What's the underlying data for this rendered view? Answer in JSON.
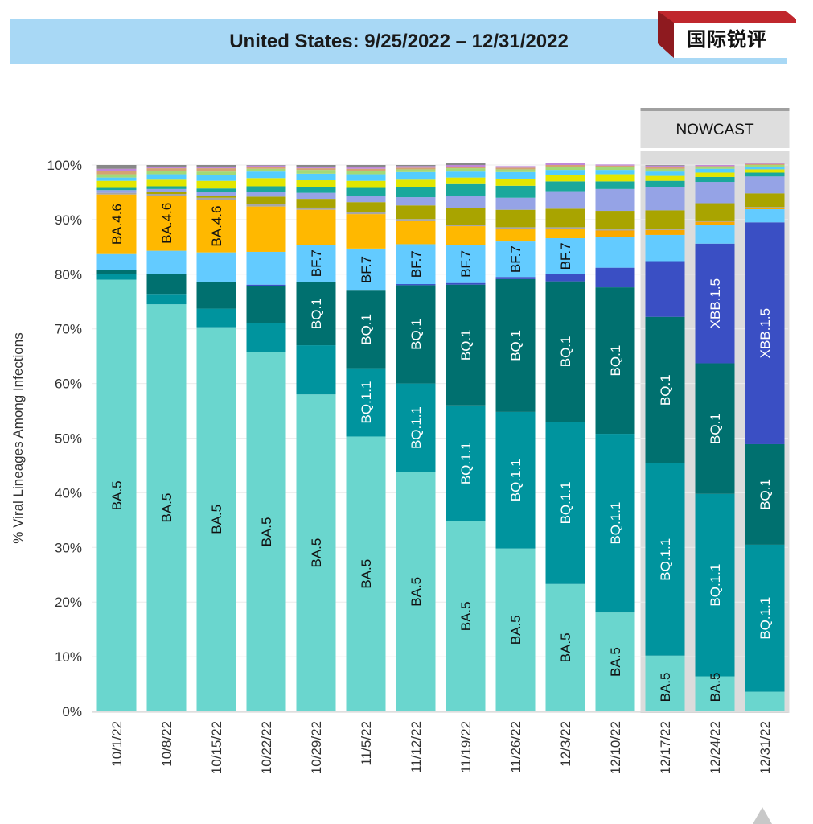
{
  "header": {
    "title": "United States: 9/25/2022 – 12/31/2022",
    "logo_text": "国际锐评",
    "logo_accent_color": "#c0272d"
  },
  "nowcast": {
    "label": "NOWCAST",
    "dates": [
      "12/17/22",
      "12/24/22",
      "12/31/22"
    ]
  },
  "chart_data": {
    "type": "bar",
    "stacked": true,
    "ylabel": "% Viral Lineages Among Infections",
    "ylim": [
      0,
      100
    ],
    "yticks": [
      "0%",
      "10%",
      "20%",
      "30%",
      "40%",
      "50%",
      "60%",
      "70%",
      "80%",
      "90%",
      "100%"
    ],
    "categories": [
      "10/1/22",
      "10/8/22",
      "10/15/22",
      "10/22/22",
      "10/29/22",
      "11/5/22",
      "11/12/22",
      "11/19/22",
      "11/26/22",
      "12/3/22",
      "12/10/22",
      "12/17/22",
      "12/24/22",
      "12/31/22"
    ],
    "series": [
      {
        "name": "BA.5",
        "color": "#6ad6ce",
        "text_color": "#111111",
        "values": [
          79.0,
          74.5,
          70.3,
          65.7,
          58.0,
          50.3,
          43.8,
          34.8,
          29.8,
          23.3,
          18.1,
          10.2,
          6.4,
          3.6
        ]
      },
      {
        "name": "BQ.1.1",
        "color": "#00949e",
        "text_color": "#ffffff",
        "values": [
          1.0,
          1.9,
          3.4,
          5.4,
          9.0,
          12.5,
          16.2,
          21.2,
          25.0,
          29.7,
          32.7,
          35.2,
          33.4,
          26.9
        ]
      },
      {
        "name": "BQ.1",
        "color": "#00706f",
        "text_color": "#ffffff",
        "values": [
          0.8,
          3.7,
          4.9,
          6.8,
          11.6,
          14.2,
          18.0,
          22.1,
          24.3,
          25.7,
          26.8,
          26.8,
          23.9,
          18.4
        ]
      },
      {
        "name": "XBB.1.5",
        "color": "#3a4fc4",
        "text_color": "#ffffff",
        "values": [
          0.0,
          0.0,
          0.0,
          0.2,
          0.0,
          0.0,
          0.2,
          0.3,
          0.4,
          1.3,
          3.6,
          10.2,
          21.9,
          40.6
        ]
      },
      {
        "name": "BF.7",
        "color": "#63cbff",
        "text_color": "#111111",
        "values": [
          2.9,
          4.2,
          5.4,
          6.0,
          6.8,
          7.7,
          7.3,
          7.0,
          6.5,
          6.6,
          5.6,
          4.8,
          3.4,
          2.4
        ]
      },
      {
        "name": "",
        "color": "#f9a800",
        "text_color": "#111111",
        "values": [
          0.0,
          0.0,
          0.0,
          0.0,
          0.0,
          0.0,
          0.0,
          0.0,
          0.0,
          0.0,
          1.2,
          0.9,
          0.6,
          0.3
        ]
      },
      {
        "name": "BA.4.6",
        "color": "#ffb800",
        "text_color": "#111111",
        "values": [
          10.9,
          10.1,
          9.6,
          8.3,
          6.4,
          6.3,
          4.2,
          3.4,
          2.3,
          1.7,
          0.0,
          0.0,
          0.0,
          0.0
        ]
      },
      {
        "name": "",
        "color": "#a6a6a6",
        "text_color": "#111111",
        "values": [
          0.3,
          0.3,
          0.4,
          0.4,
          0.4,
          0.4,
          0.4,
          0.3,
          0.3,
          0.3,
          0.2,
          0.2,
          0.1,
          0.1
        ]
      },
      {
        "name": "",
        "color": "#a9a400",
        "text_color": "#111111",
        "values": [
          0.0,
          0.3,
          0.4,
          1.4,
          1.6,
          1.8,
          2.5,
          3.0,
          3.2,
          3.4,
          3.4,
          3.4,
          3.3,
          2.5
        ]
      },
      {
        "name": "",
        "color": "#95a3e6",
        "text_color": "#111111",
        "values": [
          0.5,
          0.6,
          0.7,
          0.9,
          1.1,
          1.2,
          1.5,
          2.3,
          2.2,
          3.2,
          4.0,
          4.2,
          3.9,
          3.1
        ]
      },
      {
        "name": "",
        "color": "#1aa89c",
        "text_color": "#111111",
        "values": [
          0.4,
          0.5,
          0.6,
          1.0,
          1.1,
          1.4,
          1.8,
          2.1,
          2.2,
          1.8,
          1.4,
          1.2,
          0.9,
          0.7
        ]
      },
      {
        "name": "",
        "color": "#e2e600",
        "text_color": "#111111",
        "values": [
          1.3,
          1.2,
          1.4,
          1.5,
          1.2,
          1.3,
          1.4,
          1.2,
          1.3,
          1.2,
          1.3,
          0.9,
          0.8,
          0.6
        ]
      },
      {
        "name": "",
        "color": "#53cdff",
        "text_color": "#111111",
        "values": [
          0.6,
          1.0,
          1.1,
          1.2,
          1.2,
          1.2,
          1.4,
          1.1,
          1.2,
          0.9,
          0.8,
          0.8,
          0.7,
          0.5
        ]
      },
      {
        "name": "",
        "color": "#a3d977",
        "text_color": "#111111",
        "values": [
          0.6,
          0.6,
          0.6,
          0.5,
          0.7,
          0.6,
          0.5,
          0.6,
          0.5,
          0.6,
          0.5,
          0.5,
          0.3,
          0.3
        ]
      },
      {
        "name": "",
        "color": "#d4a373",
        "text_color": "#111111",
        "values": [
          0.6,
          0.5,
          0.6,
          0.3,
          0.3,
          0.4,
          0.3,
          0.3,
          0.3,
          0.3,
          0.3,
          0.3,
          0.2,
          0.2
        ]
      },
      {
        "name": "",
        "color": "#c087d8",
        "text_color": "#111111",
        "values": [
          0.4,
          0.3,
          0.3,
          0.3,
          0.3,
          0.3,
          0.3,
          0.3,
          0.3,
          0.3,
          0.2,
          0.3,
          0.2,
          0.2
        ]
      },
      {
        "name": "",
        "color": "#888888",
        "text_color": "#111111",
        "values": [
          0.7,
          0.3,
          0.3,
          0.1,
          0.3,
          0.4,
          0.2,
          0.3,
          0.0,
          0.0,
          0.0,
          0.1,
          0.0,
          0.0
        ]
      }
    ],
    "labels": [
      {
        "category": 0,
        "series": "BA.5"
      },
      {
        "category": 1,
        "series": "BA.5"
      },
      {
        "category": 2,
        "series": "BA.5"
      },
      {
        "category": 3,
        "series": "BA.5"
      },
      {
        "category": 4,
        "series": "BA.5"
      },
      {
        "category": 5,
        "series": "BA.5"
      },
      {
        "category": 6,
        "series": "BA.5"
      },
      {
        "category": 7,
        "series": "BA.5"
      },
      {
        "category": 8,
        "series": "BA.5"
      },
      {
        "category": 9,
        "series": "BA.5"
      },
      {
        "category": 10,
        "series": "BA.5"
      },
      {
        "category": 11,
        "series": "BA.5"
      },
      {
        "category": 12,
        "series": "BA.5"
      },
      {
        "category": 0,
        "series": "BA.4.6"
      },
      {
        "category": 1,
        "series": "BA.4.6"
      },
      {
        "category": 2,
        "series": "BA.4.6"
      },
      {
        "category": 4,
        "series": "BF.7"
      },
      {
        "category": 5,
        "series": "BF.7"
      },
      {
        "category": 6,
        "series": "BF.7"
      },
      {
        "category": 7,
        "series": "BF.7"
      },
      {
        "category": 8,
        "series": "BF.7"
      },
      {
        "category": 9,
        "series": "BF.7"
      },
      {
        "category": 4,
        "series": "BQ.1"
      },
      {
        "category": 5,
        "series": "BQ.1"
      },
      {
        "category": 6,
        "series": "BQ.1"
      },
      {
        "category": 7,
        "series": "BQ.1"
      },
      {
        "category": 8,
        "series": "BQ.1"
      },
      {
        "category": 9,
        "series": "BQ.1"
      },
      {
        "category": 10,
        "series": "BQ.1"
      },
      {
        "category": 11,
        "series": "BQ.1"
      },
      {
        "category": 12,
        "series": "BQ.1"
      },
      {
        "category": 13,
        "series": "BQ.1"
      },
      {
        "category": 5,
        "series": "BQ.1.1"
      },
      {
        "category": 6,
        "series": "BQ.1.1"
      },
      {
        "category": 7,
        "series": "BQ.1.1"
      },
      {
        "category": 8,
        "series": "BQ.1.1"
      },
      {
        "category": 9,
        "series": "BQ.1.1"
      },
      {
        "category": 10,
        "series": "BQ.1.1"
      },
      {
        "category": 11,
        "series": "BQ.1.1"
      },
      {
        "category": 12,
        "series": "BQ.1.1"
      },
      {
        "category": 13,
        "series": "BQ.1.1"
      },
      {
        "category": 12,
        "series": "XBB.1.5"
      },
      {
        "category": 13,
        "series": "XBB.1.5"
      }
    ]
  }
}
